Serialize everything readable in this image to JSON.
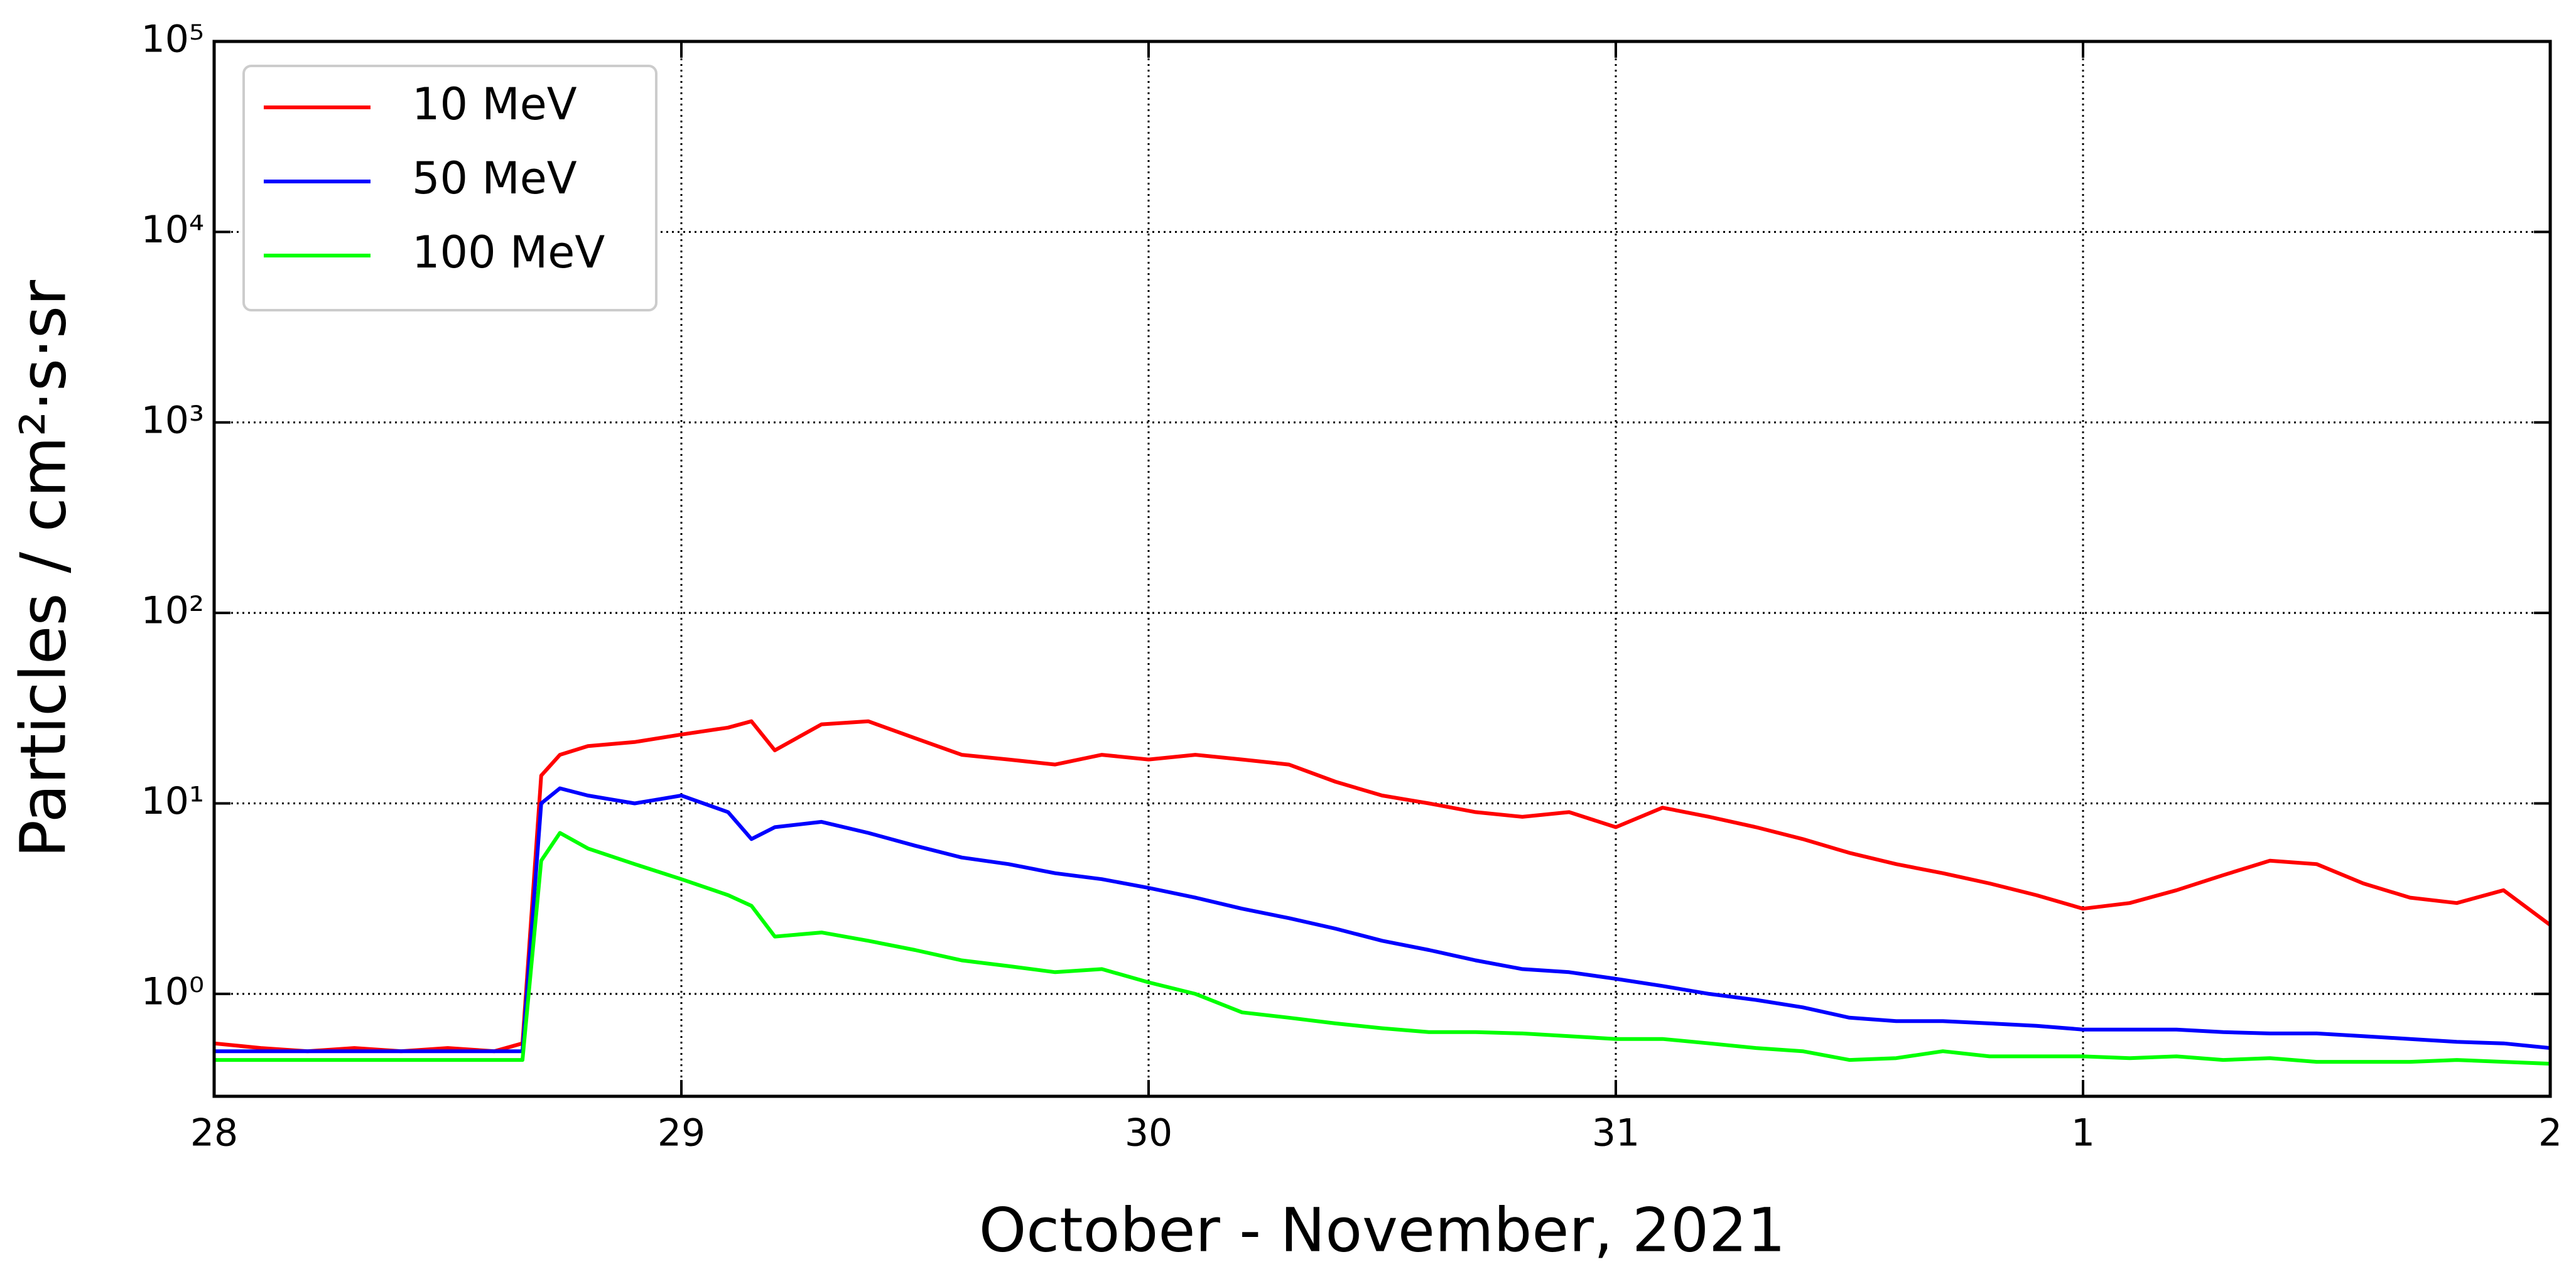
{
  "chart_data": {
    "type": "line",
    "xlabel": "October - November, 2021",
    "ylabel": "Particles / cm²·s·sr",
    "log_y": true,
    "grid": true,
    "legend_loc": "upper left",
    "xlim": [
      0,
      5
    ],
    "xticks": [
      {
        "value": 0,
        "label": "28"
      },
      {
        "value": 1,
        "label": "29"
      },
      {
        "value": 2,
        "label": "30"
      },
      {
        "value": 3,
        "label": "31"
      },
      {
        "value": 4,
        "label": "1"
      },
      {
        "value": 5,
        "label": "2"
      }
    ],
    "ylim": [
      0.29,
      100000
    ],
    "yticks": [
      {
        "value": 1,
        "label": "10⁰"
      },
      {
        "value": 10,
        "label": "10¹"
      },
      {
        "value": 100,
        "label": "10²"
      },
      {
        "value": 1000,
        "label": "10³"
      },
      {
        "value": 10000,
        "label": "10⁴"
      },
      {
        "value": 100000,
        "label": "10⁵"
      }
    ],
    "x": [
      0,
      0.1,
      0.2,
      0.3,
      0.4,
      0.5,
      0.6,
      0.66,
      0.7,
      0.74,
      0.8,
      0.9,
      1.0,
      1.1,
      1.15,
      1.2,
      1.3,
      1.4,
      1.5,
      1.6,
      1.7,
      1.8,
      1.9,
      2.0,
      2.1,
      2.2,
      2.3,
      2.4,
      2.5,
      2.6,
      2.7,
      2.8,
      2.9,
      3.0,
      3.1,
      3.2,
      3.3,
      3.4,
      3.5,
      3.6,
      3.7,
      3.8,
      3.9,
      4.0,
      4.1,
      4.2,
      4.3,
      4.4,
      4.5,
      4.6,
      4.7,
      4.8,
      4.9,
      5.0
    ],
    "series": [
      {
        "name": "10 MeV",
        "color": "#ff0000",
        "values": [
          0.55,
          0.52,
          0.5,
          0.52,
          0.5,
          0.52,
          0.5,
          0.55,
          14,
          18,
          20,
          21,
          23,
          25,
          27,
          19,
          26,
          27,
          22,
          18,
          17,
          16,
          18,
          17,
          18,
          17,
          16,
          13,
          11,
          10,
          9,
          8.5,
          9,
          7.5,
          9.5,
          8.5,
          7.5,
          6.5,
          5.5,
          4.8,
          4.3,
          3.8,
          3.3,
          2.8,
          3,
          3.5,
          4.2,
          5,
          4.8,
          3.8,
          3.2,
          3,
          3.5,
          2.3
        ]
      },
      {
        "name": "50 MeV",
        "color": "#0000ff",
        "values": [
          0.5,
          0.5,
          0.5,
          0.5,
          0.5,
          0.5,
          0.5,
          0.5,
          10,
          12,
          11,
          10,
          11,
          9,
          6.5,
          7.5,
          8,
          7,
          6,
          5.2,
          4.8,
          4.3,
          4,
          3.6,
          3.2,
          2.8,
          2.5,
          2.2,
          1.9,
          1.7,
          1.5,
          1.35,
          1.3,
          1.2,
          1.1,
          1.0,
          0.93,
          0.85,
          0.75,
          0.72,
          0.72,
          0.7,
          0.68,
          0.65,
          0.65,
          0.65,
          0.63,
          0.62,
          0.62,
          0.6,
          0.58,
          0.56,
          0.55,
          0.52
        ]
      },
      {
        "name": "100 MeV",
        "color": "#00ff00",
        "values": [
          0.45,
          0.45,
          0.45,
          0.45,
          0.45,
          0.45,
          0.45,
          0.45,
          5,
          7,
          5.8,
          4.8,
          4,
          3.3,
          2.9,
          2,
          2.1,
          1.9,
          1.7,
          1.5,
          1.4,
          1.3,
          1.35,
          1.15,
          1.0,
          0.8,
          0.75,
          0.7,
          0.66,
          0.63,
          0.63,
          0.62,
          0.6,
          0.58,
          0.58,
          0.55,
          0.52,
          0.5,
          0.45,
          0.46,
          0.5,
          0.47,
          0.47,
          0.47,
          0.46,
          0.47,
          0.45,
          0.46,
          0.44,
          0.44,
          0.44,
          0.45,
          0.44,
          0.43
        ]
      }
    ]
  }
}
